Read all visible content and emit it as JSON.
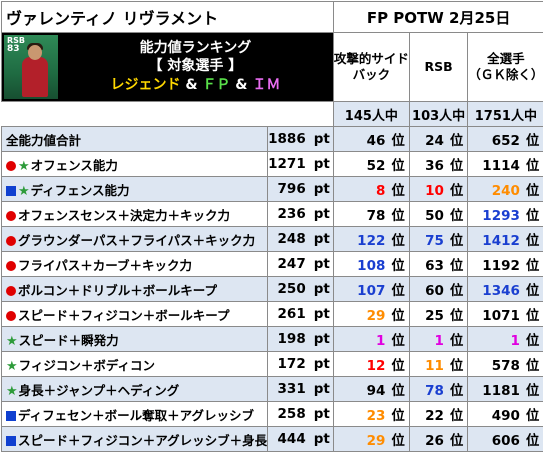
{
  "header": {
    "player_name": "ヴァレンティノ リヴラメント",
    "card_type": "FP POTW 2月25日"
  },
  "card": {
    "position": "RSB",
    "overall": "83"
  },
  "banner": {
    "line1": "能力値ランキング",
    "line2": "【 対象選手 】",
    "line3_a": "レジェンド",
    "line3_sep1": " & ",
    "line3_b": "ＦＰ",
    "line3_sep2": " & ",
    "line3_c": "ＩＭ"
  },
  "columns": [
    {
      "label_1": "攻撃的サイド",
      "label_2": "バック",
      "count": "145人中"
    },
    {
      "label_1": "RSB",
      "label_2": "",
      "count": "103人中"
    },
    {
      "label_1": "全選手",
      "label_2": "（ＧＫ除く）",
      "count": "1751人中"
    }
  ],
  "units": {
    "pt": "pt",
    "rank": "位"
  },
  "colors": {
    "red": "#ff0000",
    "orange": "#ff8c00",
    "blue": "#1a3fd0",
    "magenta": "#e000e0",
    "star": "#2d9b3a",
    "row_alt": "#dde6f2"
  },
  "rows": [
    {
      "icon": "none",
      "label": "全能力値合計",
      "points": "1886",
      "ranks": [
        {
          "v": "46",
          "c": "black"
        },
        {
          "v": "24",
          "c": "black"
        },
        {
          "v": "652",
          "c": "black"
        }
      ]
    },
    {
      "icon": "red-dot-star",
      "label": "オフェンス能力",
      "points": "1271",
      "ranks": [
        {
          "v": "52",
          "c": "black"
        },
        {
          "v": "36",
          "c": "black"
        },
        {
          "v": "1114",
          "c": "black"
        }
      ]
    },
    {
      "icon": "blue-square-star",
      "label": "ディフェンス能力",
      "points": "796",
      "ranks": [
        {
          "v": "8",
          "c": "red"
        },
        {
          "v": "10",
          "c": "red"
        },
        {
          "v": "240",
          "c": "orange"
        }
      ]
    },
    {
      "icon": "red-dot",
      "label": "オフェンスセンス＋決定力＋キック力",
      "points": "236",
      "ranks": [
        {
          "v": "78",
          "c": "black"
        },
        {
          "v": "50",
          "c": "black"
        },
        {
          "v": "1293",
          "c": "blue"
        }
      ]
    },
    {
      "icon": "red-dot",
      "label": "グラウンダーパス＋フライパス＋キック力",
      "points": "248",
      "ranks": [
        {
          "v": "122",
          "c": "blue"
        },
        {
          "v": "75",
          "c": "blue"
        },
        {
          "v": "1412",
          "c": "blue"
        }
      ]
    },
    {
      "icon": "red-dot",
      "label": "フライパス＋カーブ＋キック力",
      "points": "247",
      "ranks": [
        {
          "v": "108",
          "c": "blue"
        },
        {
          "v": "63",
          "c": "black"
        },
        {
          "v": "1192",
          "c": "black"
        }
      ]
    },
    {
      "icon": "red-dot",
      "label": "ボルコン＋ドリブル＋ボールキープ",
      "points": "250",
      "ranks": [
        {
          "v": "107",
          "c": "blue"
        },
        {
          "v": "60",
          "c": "black"
        },
        {
          "v": "1346",
          "c": "blue"
        }
      ]
    },
    {
      "icon": "red-dot",
      "label": "スピード＋フィジコン＋ボールキープ",
      "points": "261",
      "ranks": [
        {
          "v": "29",
          "c": "orange"
        },
        {
          "v": "25",
          "c": "black"
        },
        {
          "v": "1071",
          "c": "black"
        }
      ]
    },
    {
      "icon": "star",
      "label": "スピード＋瞬発力",
      "points": "198",
      "ranks": [
        {
          "v": "1",
          "c": "magenta"
        },
        {
          "v": "1",
          "c": "magenta"
        },
        {
          "v": "1",
          "c": "magenta"
        }
      ]
    },
    {
      "icon": "star",
      "label": "フィジコン＋ボディコン",
      "points": "172",
      "ranks": [
        {
          "v": "12",
          "c": "red"
        },
        {
          "v": "11",
          "c": "orange"
        },
        {
          "v": "578",
          "c": "black"
        }
      ]
    },
    {
      "icon": "star",
      "label": "身長＋ジャンプ＋ヘディング",
      "points": "331",
      "ranks": [
        {
          "v": "94",
          "c": "black"
        },
        {
          "v": "78",
          "c": "blue"
        },
        {
          "v": "1181",
          "c": "black"
        }
      ]
    },
    {
      "icon": "blue-square",
      "label": "ディフェセン＋ボール奪取＋アグレッシブ",
      "points": "258",
      "ranks": [
        {
          "v": "23",
          "c": "orange"
        },
        {
          "v": "22",
          "c": "black"
        },
        {
          "v": "490",
          "c": "black"
        }
      ]
    },
    {
      "icon": "blue-square",
      "label": "スピード＋フィジコン＋アグレッシブ＋身長",
      "points": "444",
      "ranks": [
        {
          "v": "29",
          "c": "orange"
        },
        {
          "v": "26",
          "c": "black"
        },
        {
          "v": "606",
          "c": "black"
        }
      ]
    }
  ]
}
